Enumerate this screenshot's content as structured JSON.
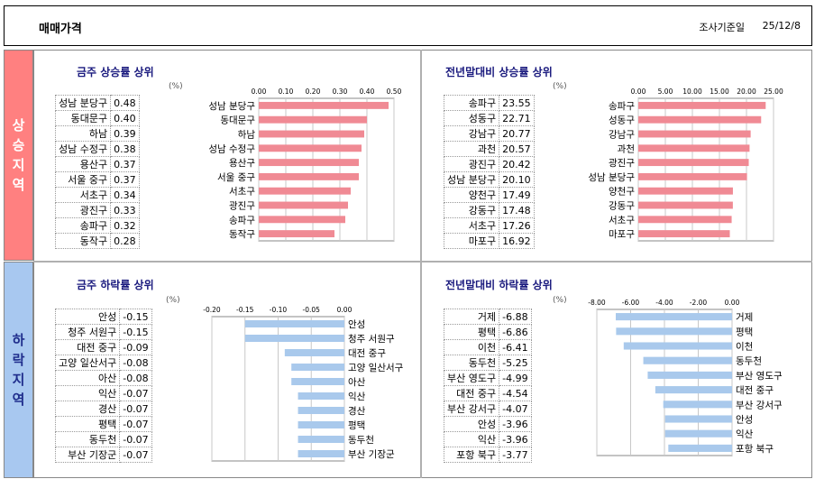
{
  "header": {
    "title": "매매가격",
    "date_label": "조사기준일",
    "date_value": "25/12/8"
  },
  "regions": {
    "rise": "상승지역",
    "fall": "하락지역"
  },
  "percent_unit": "(%)",
  "chart_data": [
    {
      "type": "bar",
      "title": "금주 상승률 상위",
      "categories": [
        "성남 분당구",
        "동대문구",
        "하남",
        "성남 수정구",
        "용산구",
        "서울 중구",
        "서초구",
        "광진구",
        "송파구",
        "동작구"
      ],
      "values": [
        0.48,
        0.4,
        0.39,
        0.38,
        0.37,
        0.37,
        0.34,
        0.33,
        0.32,
        0.28
      ],
      "value_labels": [
        "0.48",
        "0.40",
        "0.39",
        "0.38",
        "0.37",
        "0.37",
        "0.34",
        "0.33",
        "0.32",
        "0.28"
      ],
      "xlim": [
        0,
        0.5
      ],
      "ticks": [
        "0.00",
        "0.10",
        "0.20",
        "0.30",
        "0.40",
        "0.50"
      ],
      "color": "#f08a94"
    },
    {
      "type": "bar",
      "title": "전년말대비 상승률 상위",
      "categories": [
        "송파구",
        "성동구",
        "강남구",
        "과천",
        "광진구",
        "성남 분당구",
        "양천구",
        "강동구",
        "서초구",
        "마포구"
      ],
      "values": [
        23.55,
        22.71,
        20.77,
        20.57,
        20.42,
        20.1,
        17.49,
        17.48,
        17.26,
        16.92
      ],
      "value_labels": [
        "23.55",
        "22.71",
        "20.77",
        "20.57",
        "20.42",
        "20.10",
        "17.49",
        "17.48",
        "17.26",
        "16.92"
      ],
      "xlim": [
        0,
        25
      ],
      "ticks": [
        "0.00",
        "5.00",
        "10.00",
        "15.00",
        "20.00",
        "25.00"
      ],
      "color": "#f08a94"
    },
    {
      "type": "bar",
      "title": "금주 하락률 상위",
      "categories": [
        "안성",
        "청주 서원구",
        "대전 중구",
        "고양 일산서구",
        "아산",
        "익산",
        "경산",
        "평택",
        "동두천",
        "부산 기장군"
      ],
      "values": [
        -0.15,
        -0.15,
        -0.09,
        -0.08,
        -0.08,
        -0.07,
        -0.07,
        -0.07,
        -0.07,
        -0.07
      ],
      "value_labels": [
        "-0.15",
        "-0.15",
        "-0.09",
        "-0.08",
        "-0.08",
        "-0.07",
        "-0.07",
        "-0.07",
        "-0.07",
        "-0.07"
      ],
      "xlim": [
        -0.2,
        0
      ],
      "ticks": [
        "-0.20",
        "-0.15",
        "-0.10",
        "-0.05",
        "0.00"
      ],
      "color": "#a9c9ec"
    },
    {
      "type": "bar",
      "title": "전년말대비 하락률 상위",
      "categories": [
        "거제",
        "평택",
        "이천",
        "동두천",
        "부산 영도구",
        "대전 중구",
        "부산 강서구",
        "안성",
        "익산",
        "포항 북구"
      ],
      "values": [
        -6.88,
        -6.86,
        -6.41,
        -5.25,
        -4.99,
        -4.54,
        -4.07,
        -3.96,
        -3.96,
        -3.77
      ],
      "value_labels": [
        "-6.88",
        "-6.86",
        "-6.41",
        "-5.25",
        "-4.99",
        "-4.54",
        "-4.07",
        "-3.96",
        "-3.96",
        "-3.77"
      ],
      "xlim": [
        -8,
        0
      ],
      "ticks": [
        "-8.00",
        "-6.00",
        "-4.00",
        "-2.00",
        "0.00"
      ],
      "color": "#a9c9ec"
    }
  ]
}
